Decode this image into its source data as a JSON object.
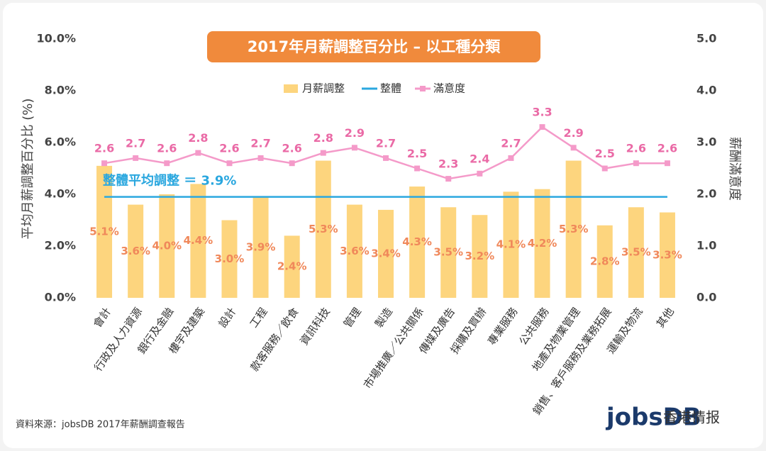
{
  "chart_data": {
    "type": "bar-line",
    "title": "2017年月薪調整百分比 – 以工種分類",
    "y_label": "平均月薪調整百分比 (%)",
    "y2_label": "薪酬滿意度",
    "source": "資料來源：jobsDB 2017年薪酬調查報告",
    "logo": "jobsDB",
    "watermark": "香港情报",
    "categories": [
      "會計",
      "行政及人力資源",
      "銀行及金融",
      "樓宇及建築",
      "設計",
      "工程",
      "款客服務／飲食",
      "資訊科技",
      "管理",
      "製造",
      "市場推廣／公共關係",
      "傳媒及廣告",
      "採購及買辦",
      "專業服務",
      "公共服務",
      "地產及物業管理",
      "銷售、客戶服務及業務拓展",
      "運輸及物流",
      "其他"
    ],
    "series": [
      {
        "name": "月薪調整",
        "type": "bar",
        "color": "#fdd57e",
        "values": [
          5.1,
          3.6,
          4.0,
          4.4,
          3.0,
          3.9,
          2.4,
          5.3,
          3.6,
          3.4,
          4.3,
          3.5,
          3.2,
          4.1,
          4.2,
          5.3,
          2.8,
          3.5,
          3.3
        ],
        "value_labels": [
          "5.1%",
          "3.6%",
          "4.0%",
          "4.4%",
          "3.0%",
          "3.9%",
          "2.4%",
          "5.3%",
          "3.6%",
          "3.4%",
          "4.3%",
          "3.5%",
          "3.2%",
          "4.1%",
          "4.2%",
          "5.3%",
          "2.8%",
          "3.5%",
          "3.3%"
        ]
      },
      {
        "name": "整體",
        "type": "hline",
        "color": "#2aa7df",
        "value": 3.9,
        "annotation": "整體平均調整 ＝ 3.9%"
      },
      {
        "name": "滿意度",
        "type": "line",
        "axis": "y2",
        "color": "#f49ac9",
        "values": [
          2.6,
          2.7,
          2.6,
          2.8,
          2.6,
          2.7,
          2.6,
          2.8,
          2.9,
          2.7,
          2.5,
          2.3,
          2.4,
          2.7,
          3.3,
          2.9,
          2.5,
          2.6,
          2.6
        ]
      }
    ],
    "ylim": [
      0,
      10
    ],
    "yticks": [
      {
        "value": 0,
        "label": "0.0%"
      },
      {
        "value": 2,
        "label": "2.0%"
      },
      {
        "value": 4,
        "label": "4.0%"
      },
      {
        "value": 6,
        "label": "6.0%"
      },
      {
        "value": 8,
        "label": "8.0%"
      },
      {
        "value": 10,
        "label": "10.0%"
      }
    ],
    "y2lim": [
      0,
      5
    ],
    "y2ticks": [
      {
        "value": 0,
        "label": "0.0"
      },
      {
        "value": 1,
        "label": "1.0"
      },
      {
        "value": 2,
        "label": "2.0"
      },
      {
        "value": 3,
        "label": "3.0"
      },
      {
        "value": 4,
        "label": "4.0"
      },
      {
        "value": 5,
        "label": "5.0"
      }
    ],
    "legend": "top"
  }
}
